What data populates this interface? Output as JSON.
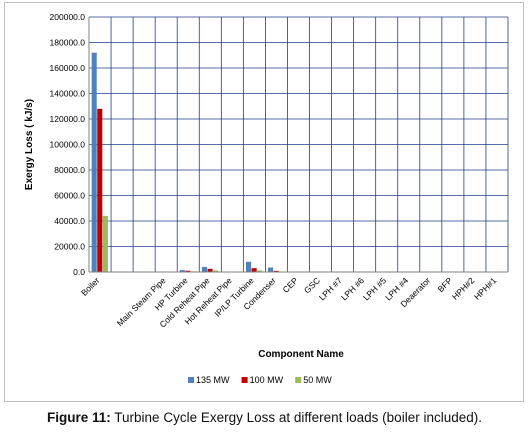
{
  "caption": {
    "label": "Figure 11:",
    "text": "Turbine Cycle Exergy Loss at different loads (boiler included)."
  },
  "chart_data": {
    "type": "bar",
    "ylabel": "Exergy Loss ( kJ/s)",
    "xlabel": "Component Name",
    "ylim": [
      0,
      200000
    ],
    "yticks": [
      "0.0",
      "20000.0",
      "40000.0",
      "60000.0",
      "80000.0",
      "100000.0",
      "120000.0",
      "140000.0",
      "160000.0",
      "180000.0",
      "200000.0"
    ],
    "categories": [
      "Boiler",
      "",
      "",
      "Main Steam Pipe",
      "HP Turbine",
      "Cold Reheat Pipe",
      "Hot Reheat Pipe",
      "IP/LP Turbine",
      "Condenser",
      "CEP",
      "GSC",
      "LPH #7",
      "LPH #6",
      "LPH #5",
      "LPH #4",
      "Deaerator",
      "BFP",
      "HPH#2",
      "HPH#1"
    ],
    "series": [
      {
        "name": "135 MW",
        "color": "#4f81bd",
        "values": [
          172000,
          0,
          0,
          150,
          1500,
          4000,
          0,
          8000,
          3500,
          100,
          100,
          100,
          100,
          100,
          100,
          400,
          100,
          100,
          100
        ]
      },
      {
        "name": "100 MW",
        "color": "#c00000",
        "values": [
          128000,
          0,
          0,
          100,
          1000,
          2500,
          0,
          3000,
          900,
          80,
          80,
          80,
          80,
          80,
          80,
          300,
          80,
          80,
          80
        ]
      },
      {
        "name": "50 MW",
        "color": "#9bbb59",
        "values": [
          44000,
          0,
          0,
          80,
          500,
          1200,
          0,
          1200,
          300,
          50,
          50,
          50,
          50,
          50,
          50,
          150,
          50,
          50,
          50
        ]
      }
    ],
    "grid": true,
    "legend": "bottom"
  }
}
